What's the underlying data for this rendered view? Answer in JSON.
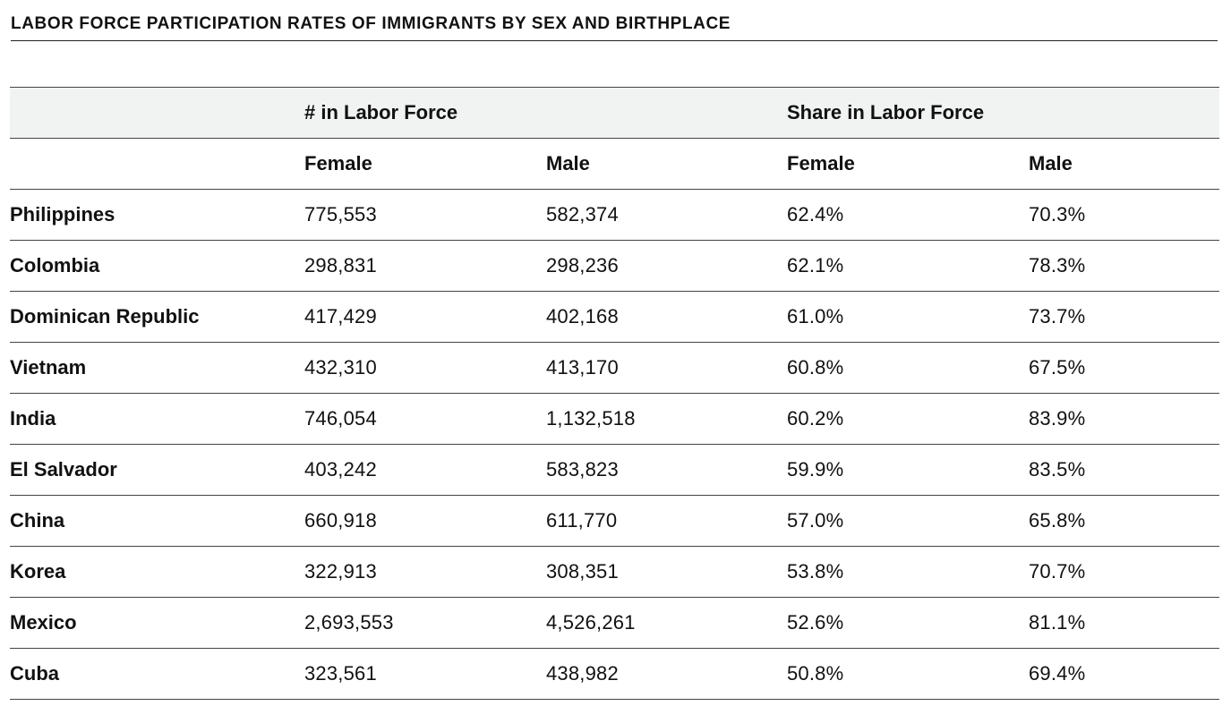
{
  "title": "LABOR FORCE PARTICIPATION RATES OF IMMIGRANTS BY SEX AND BIRTHPLACE",
  "table": {
    "group_headers": {
      "count": "# in Labor Force",
      "share": "Share in Labor Force"
    },
    "sub_headers": {
      "count_female": "Female",
      "count_male": "Male",
      "share_female": "Female",
      "share_male": "Male"
    },
    "rows": [
      {
        "country": "Philippines",
        "count_female": "775,553",
        "count_male": "582,374",
        "share_female": "62.4%",
        "share_male": "70.3%"
      },
      {
        "country": "Colombia",
        "count_female": "298,831",
        "count_male": "298,236",
        "share_female": "62.1%",
        "share_male": "78.3%"
      },
      {
        "country": "Dominican Republic",
        "count_female": "417,429",
        "count_male": "402,168",
        "share_female": "61.0%",
        "share_male": "73.7%"
      },
      {
        "country": "Vietnam",
        "count_female": "432,310",
        "count_male": "413,170",
        "share_female": "60.8%",
        "share_male": "67.5%"
      },
      {
        "country": "India",
        "count_female": "746,054",
        "count_male": "1,132,518",
        "share_female": "60.2%",
        "share_male": "83.9%"
      },
      {
        "country": "El Salvador",
        "count_female": "403,242",
        "count_male": "583,823",
        "share_female": "59.9%",
        "share_male": "83.5%"
      },
      {
        "country": "China",
        "count_female": "660,918",
        "count_male": "611,770",
        "share_female": "57.0%",
        "share_male": "65.8%"
      },
      {
        "country": "Korea",
        "count_female": "322,913",
        "count_male": "308,351",
        "share_female": "53.8%",
        "share_male": "70.7%"
      },
      {
        "country": "Mexico",
        "count_female": "2,693,553",
        "count_male": "4,526,261",
        "share_female": "52.6%",
        "share_male": "81.1%"
      },
      {
        "country": "Cuba",
        "count_female": "323,561",
        "count_male": "438,982",
        "share_female": "50.8%",
        "share_male": "69.4%"
      }
    ]
  }
}
